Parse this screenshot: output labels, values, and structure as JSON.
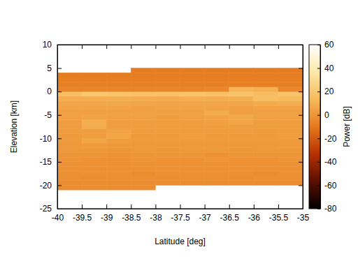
{
  "chart_data": {
    "type": "heatmap",
    "x_label": "Latitude [deg]",
    "y_label": "Elevation [km]",
    "xlim": [
      -40,
      -35
    ],
    "xticks": [
      -40,
      -39.5,
      -39,
      -38.5,
      -38,
      -37.5,
      -37,
      -36.5,
      -36,
      -35.5,
      -35
    ],
    "ylim": [
      -25,
      10
    ],
    "yticks": [
      -25,
      -20,
      -15,
      -10,
      -5,
      0,
      5,
      10
    ],
    "grid": false,
    "x_edges": [
      -40,
      -39.5,
      -39,
      -38.5,
      -38,
      -37.5,
      -37,
      -36.5,
      -36,
      -35.5,
      -35
    ],
    "y_edges": [
      -21,
      -20,
      -19,
      -18,
      -17,
      -16,
      -15,
      -14,
      -13,
      -12,
      -11,
      -10,
      -9,
      -8,
      -7,
      -6,
      -5,
      -4,
      -3,
      -2,
      -1,
      0,
      1,
      2,
      3,
      4,
      5
    ],
    "z": [
      [
        -3,
        -3,
        -3,
        -3,
        null,
        null,
        null,
        null,
        null,
        null
      ],
      [
        -3,
        -3,
        -3,
        -3,
        -3,
        -3,
        -3,
        -3,
        -3,
        -3
      ],
      [
        -2,
        -3,
        -2,
        -2,
        -3,
        -2,
        -2,
        -3,
        -2,
        -2
      ],
      [
        -2,
        -2,
        -2,
        -3,
        -2,
        -2,
        -2,
        -2,
        -3,
        -2
      ],
      [
        -1,
        -2,
        -2,
        -2,
        -1,
        -2,
        -2,
        -1,
        -2,
        -2
      ],
      [
        -1,
        -1,
        -2,
        -1,
        -1,
        -1,
        -2,
        -1,
        -1,
        -1
      ],
      [
        0,
        -1,
        -1,
        0,
        -1,
        -1,
        0,
        -1,
        -1,
        0
      ],
      [
        0,
        0,
        -1,
        0,
        0,
        0,
        -1,
        0,
        0,
        0
      ],
      [
        1,
        1,
        0,
        1,
        0,
        1,
        1,
        0,
        1,
        1
      ],
      [
        1,
        2,
        1,
        1,
        1,
        1,
        1,
        1,
        1,
        2
      ],
      [
        2,
        6,
        3,
        2,
        2,
        2,
        2,
        2,
        2,
        2
      ],
      [
        2,
        3,
        6,
        2,
        2,
        3,
        2,
        2,
        2,
        3
      ],
      [
        3,
        3,
        5,
        3,
        3,
        3,
        3,
        3,
        2,
        3
      ],
      [
        3,
        8,
        3,
        3,
        3,
        3,
        3,
        3,
        3,
        3
      ],
      [
        3,
        9,
        3,
        3,
        3,
        3,
        4,
        6,
        3,
        3
      ],
      [
        4,
        5,
        4,
        4,
        3,
        4,
        5,
        7,
        4,
        4
      ],
      [
        4,
        4,
        4,
        4,
        4,
        4,
        8,
        4,
        4,
        4
      ],
      [
        5,
        5,
        5,
        4,
        5,
        5,
        5,
        4,
        5,
        5
      ],
      [
        6,
        6,
        7,
        6,
        5,
        6,
        6,
        6,
        8,
        9
      ],
      [
        9,
        9,
        10,
        9,
        8,
        9,
        9,
        10,
        16,
        14
      ],
      [
        16,
        20,
        18,
        17,
        17,
        18,
        17,
        18,
        15,
        18
      ],
      [
        -6,
        -6,
        -6,
        -6,
        -6,
        -6,
        -5,
        12,
        10,
        -5
      ],
      [
        -8,
        -8,
        -8,
        -8,
        -8,
        -8,
        -8,
        -8,
        -8,
        -8
      ],
      [
        -8,
        -8,
        -8,
        -8,
        -8,
        -8,
        -8,
        -8,
        -8,
        -8
      ],
      [
        -9,
        -9,
        -9,
        -9,
        -9,
        -9,
        -9,
        -9,
        -9,
        -9
      ],
      [
        null,
        null,
        null,
        -9,
        -9,
        -9,
        -9,
        -9,
        -9,
        -9
      ]
    ],
    "z_label": "Power [dB]",
    "zlim": [
      -80,
      60
    ],
    "zticks": [
      -80,
      -60,
      -40,
      -20,
      0,
      20,
      40,
      60
    ]
  }
}
